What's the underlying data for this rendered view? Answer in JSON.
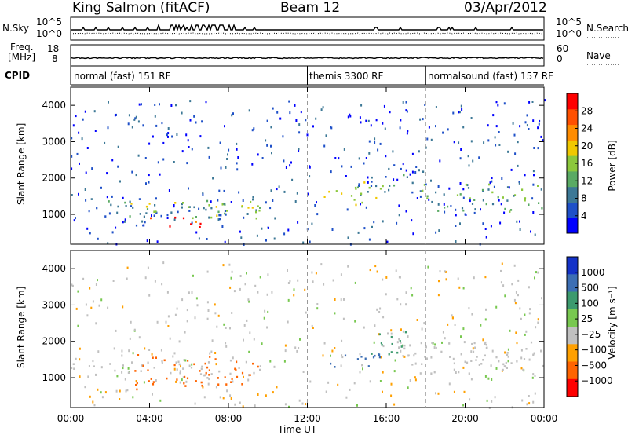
{
  "header": {
    "station": "King Salmon (fitACF)",
    "beam": "Beam 12",
    "date": "03/Apr/2012"
  },
  "top_panels": {
    "nsky_label": "N.Sky",
    "nsearch_label": "N.Search",
    "freq_label_1": "Freq.",
    "freq_label_2": "[MHz]",
    "nave_label": "Nave",
    "cpid_label": "CPID",
    "left_ticks": [
      "10^5",
      "10^0",
      "18",
      "8"
    ],
    "right_ticks": [
      "10^5",
      "10^0",
      "60",
      "0"
    ]
  },
  "cpid_segments": [
    {
      "label": "normal (fast) 151 RF",
      "start": 0.0
    },
    {
      "label": "themis 3300 RF",
      "start": 12.0
    },
    {
      "label": "normalsound (fast) 157 RF",
      "start": 18.0
    }
  ],
  "colors": {
    "power_scale": [
      "#0000ff",
      "#1e50c8",
      "#3c7896",
      "#5aaa64",
      "#8cc83c",
      "#f0c800",
      "#ff8c00",
      "#ff5000",
      "#ff0000"
    ],
    "velocity_scale": [
      "#1432c8",
      "#3c6eb4",
      "#3c9a6e",
      "#78c850",
      "#c0c0c0",
      "#c8c8c8",
      "#ffa000",
      "#ff6400",
      "#ff0000"
    ]
  },
  "chart_data": [
    {
      "type": "heatmap",
      "title": "Power",
      "ylabel": "Slant Range [km]",
      "xlabel": "Time UT",
      "x_ticks": [
        "00:00",
        "04:00",
        "08:00",
        "12:00",
        "16:00",
        "20:00",
        "00:00"
      ],
      "y_ticks": [
        "1000",
        "2000",
        "3000",
        "4000"
      ],
      "ylim": [
        180,
        4500
      ],
      "xlim": [
        0,
        24
      ],
      "colorbar_label": "Power [dB]",
      "colorbar_ticks": [
        "4",
        "8",
        "12",
        "16",
        "20",
        "24",
        "28"
      ],
      "colorbar_range": [
        0,
        32
      ],
      "regions": [
        {
          "t0": 0.3,
          "t1": 9.6,
          "r0": 950,
          "r1": 1450,
          "level": 8
        },
        {
          "t0": 2.8,
          "t1": 9.6,
          "r0": 900,
          "r1": 1400,
          "level": 16
        },
        {
          "t0": 4.0,
          "t1": 7.0,
          "r0": 650,
          "r1": 950,
          "level": 28
        },
        {
          "t0": 2.0,
          "t1": 4.0,
          "r0": 700,
          "r1": 850,
          "level": 6
        },
        {
          "t0": 12.8,
          "t1": 13.8,
          "r0": 1250,
          "r1": 1700,
          "level": 20
        },
        {
          "t0": 14.2,
          "t1": 15.8,
          "r0": 1250,
          "r1": 2250,
          "level": 16
        },
        {
          "t0": 15.0,
          "t1": 18.0,
          "r0": 1600,
          "r1": 2400,
          "level": 8
        },
        {
          "t0": 17.8,
          "t1": 24.0,
          "r0": 1050,
          "r1": 1900,
          "level": 12
        }
      ]
    },
    {
      "type": "heatmap",
      "title": "Velocity",
      "ylabel": "Slant Range [km]",
      "xlabel": "Time UT",
      "x_ticks": [
        "00:00",
        "04:00",
        "08:00",
        "12:00",
        "16:00",
        "20:00",
        "00:00"
      ],
      "y_ticks": [
        "1000",
        "2000",
        "3000",
        "4000"
      ],
      "ylim": [
        180,
        4500
      ],
      "xlim": [
        0,
        24
      ],
      "colorbar_label": "Velocity [m s⁻¹]",
      "colorbar_ticks": [
        "1000",
        "500",
        "100",
        "25",
        "−25",
        "−100",
        "−500",
        "−1000"
      ],
      "regions": [
        {
          "t0": 0.0,
          "t1": 9.6,
          "r0": 1000,
          "r1": 1500,
          "level": 0
        },
        {
          "t0": 3.0,
          "t1": 9.6,
          "r0": 800,
          "r1": 1650,
          "level": -300
        },
        {
          "t0": 2.8,
          "t1": 3.6,
          "r0": 650,
          "r1": 1000,
          "level": -300
        },
        {
          "t0": 13.0,
          "t1": 15.8,
          "r0": 1300,
          "r1": 1800,
          "level": 300
        },
        {
          "t0": 15.0,
          "t1": 17.0,
          "r0": 1600,
          "r1": 2300,
          "level": 100
        },
        {
          "t0": 16.5,
          "t1": 24.0,
          "r0": 1100,
          "r1": 2000,
          "level": 0
        }
      ]
    }
  ]
}
